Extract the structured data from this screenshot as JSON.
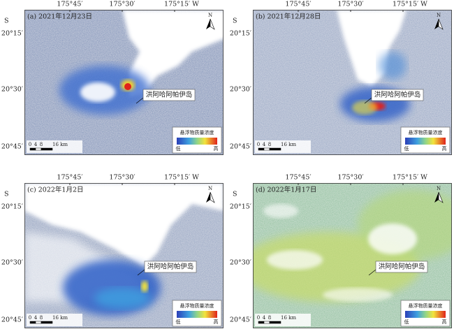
{
  "panels": [
    {
      "label": "(a) 2021年12月23日",
      "lon_labels": [
        "175°45′",
        "175°30′",
        "175°15′ W"
      ],
      "lat_labels": [
        "S",
        "20°15′",
        "20°30′",
        "20°45′"
      ],
      "island_label": "洪阿哈阿帕伊岛",
      "north": "N",
      "legend": {
        "title": "悬浮物质量浓度",
        "low": "低",
        "high": "高"
      },
      "scale_labels": [
        "0",
        "4",
        "8",
        "16 km"
      ]
    },
    {
      "label": "(b) 2021年12月28日",
      "lon_labels": [
        "175°45′",
        "175°30′",
        "175°15′ W"
      ],
      "lat_labels": [
        "S",
        "20°15′",
        "20°30′",
        "20°45′"
      ],
      "island_label": "洪阿哈阿帕伊岛",
      "north": "N",
      "legend": {
        "title": "悬浮物质量浓度",
        "low": "低",
        "high": "高"
      },
      "scale_labels": [
        "0",
        "4",
        "8",
        "16 km"
      ]
    },
    {
      "label": "(c) 2022年1月2日",
      "lon_labels": [
        "175°45′",
        "175°30′",
        "175°15′ W"
      ],
      "lat_labels": [
        "S",
        "20°15′",
        "20°30′",
        "20°45′"
      ],
      "island_label": "洪阿哈阿帕伊岛",
      "north": "N",
      "legend": {
        "title": "悬浮物质量浓度",
        "low": "低",
        "high": "高"
      },
      "scale_labels": [
        "0",
        "4",
        "8",
        "16 km"
      ]
    },
    {
      "label": "(d) 2022年1月17日",
      "lon_labels": [
        "175°45′",
        "175°30′",
        "175°15′ W"
      ],
      "lat_labels": [
        "S",
        "20°15′",
        "20°30′",
        "20°45′"
      ],
      "island_label": "洪阿哈阿帕伊岛",
      "north": "N",
      "legend": {
        "title": "悬浮物质量浓度",
        "low": "低",
        "high": "高"
      },
      "scale_labels": [
        "0",
        "4",
        "8",
        "16 km"
      ]
    }
  ]
}
